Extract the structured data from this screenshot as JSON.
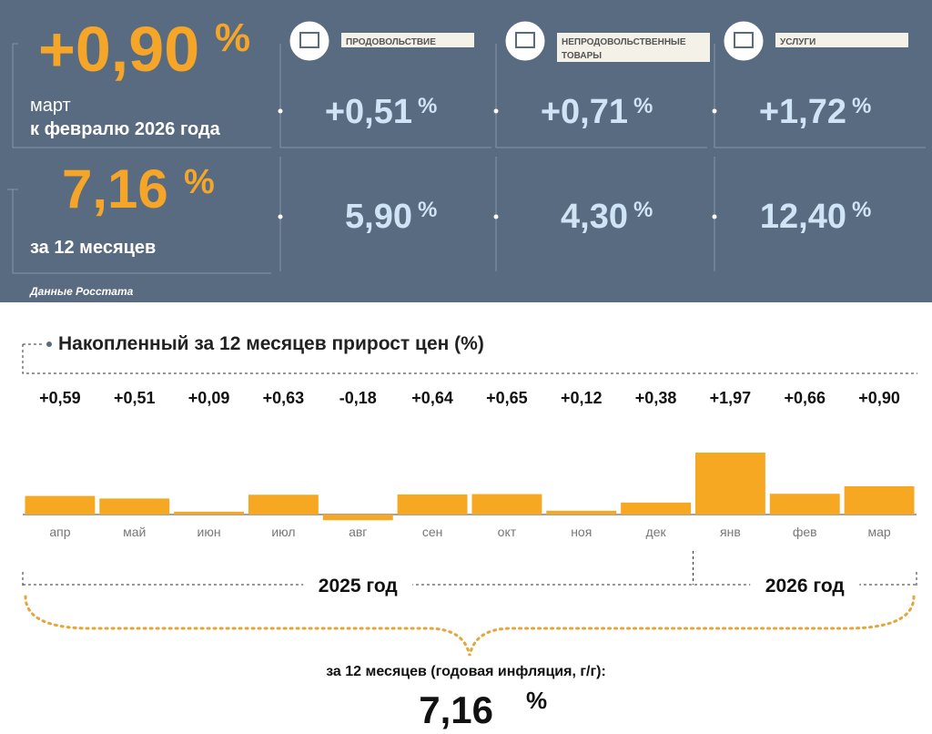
{
  "header": {
    "monthly": {
      "value": "+0,90",
      "label_line1": "март",
      "label_line2": "к февралю 2026 года"
    },
    "annual": {
      "value": "7,16",
      "label": "за 12 месяцев"
    },
    "percent_sign": "%",
    "source": "Данные Росстата",
    "categories": [
      {
        "name": [
          "ПРОДОВОЛЬСТВИЕ"
        ],
        "monthly": "+0,51",
        "annual": "5,90"
      },
      {
        "name": [
          "НЕПРОДОВОЛЬСТВЕННЫЕ",
          "ТОВАРЫ"
        ],
        "monthly": "+0,71",
        "annual": "4,30"
      },
      {
        "name": [
          "УСЛУГИ"
        ],
        "monthly": "+1,72",
        "annual": "12,40"
      }
    ]
  },
  "chart_data": {
    "type": "bar",
    "title": "Накопленный за 12 месяцев прирост цен (%)",
    "categories": [
      "апр",
      "май",
      "июн",
      "июл",
      "авг",
      "сен",
      "окт",
      "ноя",
      "дек",
      "янв",
      "фев",
      "мар"
    ],
    "values": [
      0.59,
      0.51,
      0.09,
      0.63,
      -0.18,
      0.64,
      0.65,
      0.12,
      0.38,
      1.97,
      0.66,
      0.9
    ],
    "value_labels": [
      "+0,59",
      "+0,51",
      "+0,09",
      "+0,63",
      "-0,18",
      "+0,64",
      "+0,65",
      "+0,12",
      "+0,38",
      "+1,97",
      "+0,66",
      "+0,90"
    ],
    "color": "#f7a823",
    "groups": [
      "2025 год",
      "2026 год"
    ],
    "summary_label": "за 12 месяцев (годовая инфляция, г/г):",
    "summary_value": "7,16",
    "summary_unit": "%"
  }
}
